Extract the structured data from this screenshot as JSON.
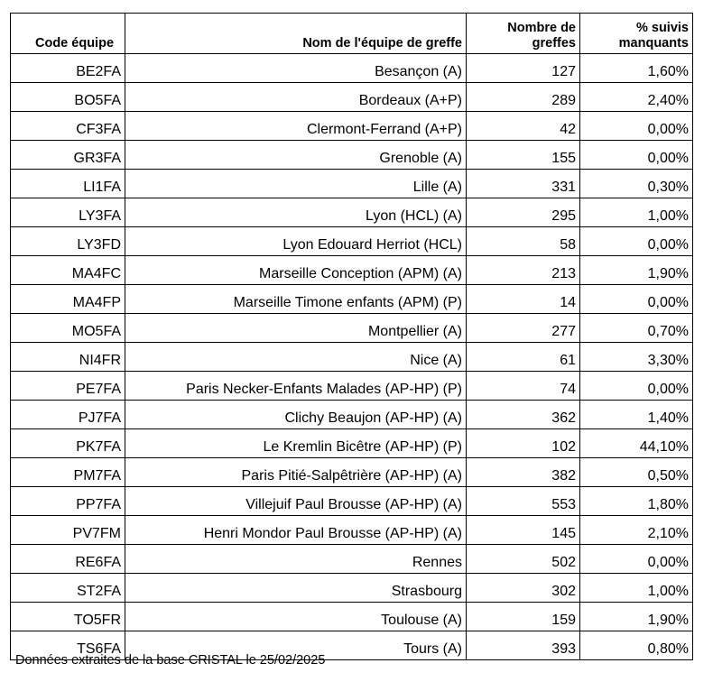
{
  "table": {
    "headers": {
      "code": "Code équipe",
      "name": "Nom de l'équipe de greffe",
      "count": "Nombre de greffes",
      "pct": "% suivis manquants"
    },
    "rows": [
      {
        "code": "BE2FA",
        "name": "Besançon (A)",
        "count": "127",
        "pct": "1,60%"
      },
      {
        "code": "BO5FA",
        "name": "Bordeaux (A+P)",
        "count": "289",
        "pct": "2,40%"
      },
      {
        "code": "CF3FA",
        "name": "Clermont-Ferrand (A+P)",
        "count": "42",
        "pct": "0,00%"
      },
      {
        "code": "GR3FA",
        "name": "Grenoble (A)",
        "count": "155",
        "pct": "0,00%"
      },
      {
        "code": "LI1FA",
        "name": "Lille (A)",
        "count": "331",
        "pct": "0,30%"
      },
      {
        "code": "LY3FA",
        "name": "Lyon (HCL) (A)",
        "count": "295",
        "pct": "1,00%"
      },
      {
        "code": "LY3FD",
        "name": "Lyon Edouard Herriot (HCL)",
        "count": "58",
        "pct": "0,00%"
      },
      {
        "code": "MA4FC",
        "name": "Marseille Conception (APM) (A)",
        "count": "213",
        "pct": "1,90%"
      },
      {
        "code": "MA4FP",
        "name": "Marseille Timone enfants (APM) (P)",
        "count": "14",
        "pct": "0,00%"
      },
      {
        "code": "MO5FA",
        "name": "Montpellier (A)",
        "count": "277",
        "pct": "0,70%"
      },
      {
        "code": "NI4FR",
        "name": "Nice (A)",
        "count": "61",
        "pct": "3,30%"
      },
      {
        "code": "PE7FA",
        "name": "Paris Necker-Enfants Malades (AP-HP) (P)",
        "count": "74",
        "pct": "0,00%"
      },
      {
        "code": "PJ7FA",
        "name": "Clichy Beaujon (AP-HP) (A)",
        "count": "362",
        "pct": "1,40%"
      },
      {
        "code": "PK7FA",
        "name": "Le Kremlin Bicêtre (AP-HP) (P)",
        "count": "102",
        "pct": "44,10%"
      },
      {
        "code": "PM7FA",
        "name": "Paris Pitié-Salpêtrière (AP-HP) (A)",
        "count": "382",
        "pct": "0,50%"
      },
      {
        "code": "PP7FA",
        "name": "Villejuif Paul Brousse (AP-HP) (A)",
        "count": "553",
        "pct": "1,80%"
      },
      {
        "code": "PV7FM",
        "name": "Henri Mondor Paul Brousse (AP-HP) (A)",
        "count": "145",
        "pct": "2,10%"
      },
      {
        "code": "RE6FA",
        "name": "Rennes",
        "count": "502",
        "pct": "0,00%"
      },
      {
        "code": "ST2FA",
        "name": "Strasbourg",
        "count": "302",
        "pct": "1,00%"
      },
      {
        "code": "TO5FR",
        "name": "Toulouse (A)",
        "count": "159",
        "pct": "1,90%"
      },
      {
        "code": "TS6FA",
        "name": "Tours (A)",
        "count": "393",
        "pct": "0,80%"
      }
    ]
  },
  "footnote": "Données extraites de la base CRISTAL le 25/02/2025"
}
